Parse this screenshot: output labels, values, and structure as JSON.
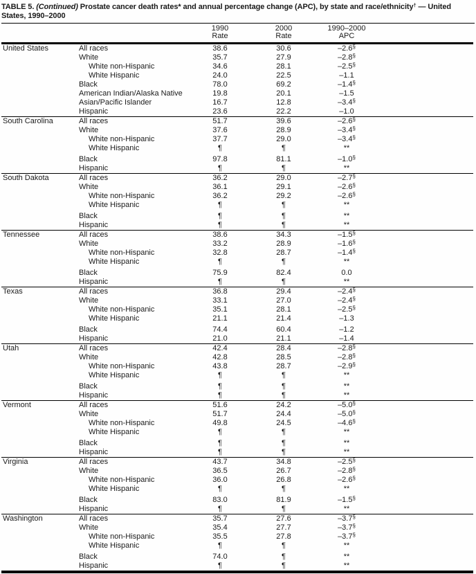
{
  "title": {
    "label": "TABLE 5. ",
    "continued": "(Continued)",
    "body": " Prostate cancer death rates* and annual percentage change (APC), by state and race/ethnicity",
    "dagger": "†",
    "tail": " — United States, 1990–2000"
  },
  "columns": {
    "rate1990": {
      "line1": "1990",
      "line2": "Rate"
    },
    "rate2000": {
      "line1": "2000",
      "line2": "Rate"
    },
    "apc": {
      "line1": "1990–2000",
      "line2": "APC"
    }
  },
  "symbols": {
    "rate_suppressed": "¶",
    "apc_suppressed": "**",
    "statistically_significant": "§"
  },
  "sections": [
    {
      "state": "United States",
      "rows": [
        {
          "race": "All races",
          "indent": false,
          "rate1990": "38.6",
          "rate2000": "30.6",
          "apc": "–2.6",
          "apc_marker": "§"
        },
        {
          "race": "White",
          "indent": false,
          "rate1990": "35.7",
          "rate2000": "27.9",
          "apc": "–2.8",
          "apc_marker": "§"
        },
        {
          "race": "White non-Hispanic",
          "indent": true,
          "rate1990": "34.6",
          "rate2000": "28.1",
          "apc": "–2.5",
          "apc_marker": "§"
        },
        {
          "race": "White Hispanic",
          "indent": true,
          "rate1990": "24.0",
          "rate2000": "22.5",
          "apc": "–1.1",
          "apc_marker": ""
        },
        {
          "race": "Black",
          "indent": false,
          "rate1990": "78.0",
          "rate2000": "69.2",
          "apc": "–1.4",
          "apc_marker": "§"
        },
        {
          "race": "American Indian/Alaska Native",
          "indent": false,
          "rate1990": "19.8",
          "rate2000": "20.1",
          "apc": "–1.5",
          "apc_marker": ""
        },
        {
          "race": "Asian/Pacific Islander",
          "indent": false,
          "rate1990": "16.7",
          "rate2000": "12.8",
          "apc": "–3.4",
          "apc_marker": "§"
        },
        {
          "race": "Hispanic",
          "indent": false,
          "rate1990": "23.6",
          "rate2000": "22.2",
          "apc": "–1.0",
          "apc_marker": ""
        }
      ]
    },
    {
      "state": "South Carolina",
      "rows": [
        {
          "race": "All races",
          "indent": false,
          "rate1990": "51.7",
          "rate2000": "39.6",
          "apc": "–2.6",
          "apc_marker": "§"
        },
        {
          "race": "White",
          "indent": false,
          "rate1990": "37.6",
          "rate2000": "28.9",
          "apc": "–3.4",
          "apc_marker": "§"
        },
        {
          "race": "White non-Hispanic",
          "indent": true,
          "rate1990": "37.7",
          "rate2000": "29.0",
          "apc": "–3.4",
          "apc_marker": "§"
        },
        {
          "race": "White Hispanic",
          "indent": true,
          "rate1990": "¶",
          "rate2000": "¶",
          "apc": "**",
          "apc_marker": ""
        },
        {
          "race": "Black",
          "indent": false,
          "rate1990": "97.8",
          "rate2000": "81.1",
          "apc": "–1.0",
          "apc_marker": "§"
        },
        {
          "race": "Hispanic",
          "indent": false,
          "rate1990": "¶",
          "rate2000": "¶",
          "apc": "**",
          "apc_marker": ""
        }
      ]
    },
    {
      "state": "South Dakota",
      "rows": [
        {
          "race": "All races",
          "indent": false,
          "rate1990": "36.2",
          "rate2000": "29.0",
          "apc": "–2.7",
          "apc_marker": "§"
        },
        {
          "race": "White",
          "indent": false,
          "rate1990": "36.1",
          "rate2000": "29.1",
          "apc": "–2.6",
          "apc_marker": "§"
        },
        {
          "race": "White non-Hispanic",
          "indent": true,
          "rate1990": "36.2",
          "rate2000": "29.2",
          "apc": "–2.6",
          "apc_marker": "§"
        },
        {
          "race": "White Hispanic",
          "indent": true,
          "rate1990": "¶",
          "rate2000": "¶",
          "apc": "**",
          "apc_marker": ""
        },
        {
          "race": "Black",
          "indent": false,
          "rate1990": "¶",
          "rate2000": "¶",
          "apc": "**",
          "apc_marker": ""
        },
        {
          "race": "Hispanic",
          "indent": false,
          "rate1990": "¶",
          "rate2000": "¶",
          "apc": "**",
          "apc_marker": ""
        }
      ]
    },
    {
      "state": "Tennessee",
      "rows": [
        {
          "race": "All races",
          "indent": false,
          "rate1990": "38.6",
          "rate2000": "34.3",
          "apc": "–1.5",
          "apc_marker": "§"
        },
        {
          "race": "White",
          "indent": false,
          "rate1990": "33.2",
          "rate2000": "28.9",
          "apc": "–1.6",
          "apc_marker": "§"
        },
        {
          "race": "White non-Hispanic",
          "indent": true,
          "rate1990": "32.8",
          "rate2000": "28.7",
          "apc": "–1.4",
          "apc_marker": "§"
        },
        {
          "race": "White Hispanic",
          "indent": true,
          "rate1990": "¶",
          "rate2000": "¶",
          "apc": "**",
          "apc_marker": ""
        },
        {
          "race": "Black",
          "indent": false,
          "rate1990": "75.9",
          "rate2000": "82.4",
          "apc": "0.0",
          "apc_marker": ""
        },
        {
          "race": "Hispanic",
          "indent": false,
          "rate1990": "¶",
          "rate2000": "¶",
          "apc": "**",
          "apc_marker": ""
        }
      ]
    },
    {
      "state": "Texas",
      "rows": [
        {
          "race": "All races",
          "indent": false,
          "rate1990": "36.8",
          "rate2000": "29.4",
          "apc": "–2.4",
          "apc_marker": "§"
        },
        {
          "race": "White",
          "indent": false,
          "rate1990": "33.1",
          "rate2000": "27.0",
          "apc": "–2.4",
          "apc_marker": "§"
        },
        {
          "race": "White non-Hispanic",
          "indent": true,
          "rate1990": "35.1",
          "rate2000": "28.1",
          "apc": "–2.5",
          "apc_marker": "§"
        },
        {
          "race": "White Hispanic",
          "indent": true,
          "rate1990": "21.1",
          "rate2000": "21.4",
          "apc": "–1.3",
          "apc_marker": ""
        },
        {
          "race": "Black",
          "indent": false,
          "rate1990": "74.4",
          "rate2000": "60.4",
          "apc": "–1.2",
          "apc_marker": ""
        },
        {
          "race": "Hispanic",
          "indent": false,
          "rate1990": "21.0",
          "rate2000": "21.1",
          "apc": "–1.4",
          "apc_marker": ""
        }
      ]
    },
    {
      "state": "Utah",
      "rows": [
        {
          "race": "All races",
          "indent": false,
          "rate1990": "42.4",
          "rate2000": "28.4",
          "apc": "–2.8",
          "apc_marker": "§"
        },
        {
          "race": "White",
          "indent": false,
          "rate1990": "42.8",
          "rate2000": "28.5",
          "apc": "–2.8",
          "apc_marker": "§"
        },
        {
          "race": "White non-Hispanic",
          "indent": true,
          "rate1990": "43.8",
          "rate2000": "28.7",
          "apc": "–2.9",
          "apc_marker": "§"
        },
        {
          "race": "White Hispanic",
          "indent": true,
          "rate1990": "¶",
          "rate2000": "¶",
          "apc": "**",
          "apc_marker": ""
        },
        {
          "race": "Black",
          "indent": false,
          "rate1990": "¶",
          "rate2000": "¶",
          "apc": "**",
          "apc_marker": ""
        },
        {
          "race": "Hispanic",
          "indent": false,
          "rate1990": "¶",
          "rate2000": "¶",
          "apc": "**",
          "apc_marker": ""
        }
      ]
    },
    {
      "state": "Vermont",
      "rows": [
        {
          "race": "All races",
          "indent": false,
          "rate1990": "51.6",
          "rate2000": "24.2",
          "apc": "–5.0",
          "apc_marker": "§"
        },
        {
          "race": "White",
          "indent": false,
          "rate1990": "51.7",
          "rate2000": "24.4",
          "apc": "–5.0",
          "apc_marker": "§"
        },
        {
          "race": "White non-Hispanic",
          "indent": true,
          "rate1990": "49.8",
          "rate2000": "24.5",
          "apc": "–4.6",
          "apc_marker": "§"
        },
        {
          "race": "White Hispanic",
          "indent": true,
          "rate1990": "¶",
          "rate2000": "¶",
          "apc": "**",
          "apc_marker": ""
        },
        {
          "race": "Black",
          "indent": false,
          "rate1990": "¶",
          "rate2000": "¶",
          "apc": "**",
          "apc_marker": ""
        },
        {
          "race": "Hispanic",
          "indent": false,
          "rate1990": "¶",
          "rate2000": "¶",
          "apc": "**",
          "apc_marker": ""
        }
      ]
    },
    {
      "state": "Virginia",
      "rows": [
        {
          "race": "All races",
          "indent": false,
          "rate1990": "43.7",
          "rate2000": "34.8",
          "apc": "–2.5",
          "apc_marker": "§"
        },
        {
          "race": "White",
          "indent": false,
          "rate1990": "36.5",
          "rate2000": "26.7",
          "apc": "–2.8",
          "apc_marker": "§"
        },
        {
          "race": "White non-Hispanic",
          "indent": true,
          "rate1990": "36.0",
          "rate2000": "26.8",
          "apc": "–2.6",
          "apc_marker": "§"
        },
        {
          "race": "White Hispanic",
          "indent": true,
          "rate1990": "¶",
          "rate2000": "¶",
          "apc": "**",
          "apc_marker": ""
        },
        {
          "race": "Black",
          "indent": false,
          "rate1990": "83.0",
          "rate2000": "81.9",
          "apc": "–1.5",
          "apc_marker": "§"
        },
        {
          "race": "Hispanic",
          "indent": false,
          "rate1990": "¶",
          "rate2000": "¶",
          "apc": "**",
          "apc_marker": ""
        }
      ]
    },
    {
      "state": "Washington",
      "rows": [
        {
          "race": "All races",
          "indent": false,
          "rate1990": "35.7",
          "rate2000": "27.6",
          "apc": "–3.7",
          "apc_marker": "§"
        },
        {
          "race": "White",
          "indent": false,
          "rate1990": "35.4",
          "rate2000": "27.7",
          "apc": "–3.7",
          "apc_marker": "§"
        },
        {
          "race": "White non-Hispanic",
          "indent": true,
          "rate1990": "35.5",
          "rate2000": "27.8",
          "apc": "–3.7",
          "apc_marker": "§"
        },
        {
          "race": "White Hispanic",
          "indent": true,
          "rate1990": "¶",
          "rate2000": "¶",
          "apc": "**",
          "apc_marker": ""
        },
        {
          "race": "Black",
          "indent": false,
          "rate1990": "74.0",
          "rate2000": "¶",
          "apc": "**",
          "apc_marker": ""
        },
        {
          "race": "Hispanic",
          "indent": false,
          "rate1990": "¶",
          "rate2000": "¶",
          "apc": "**",
          "apc_marker": ""
        }
      ]
    }
  ]
}
